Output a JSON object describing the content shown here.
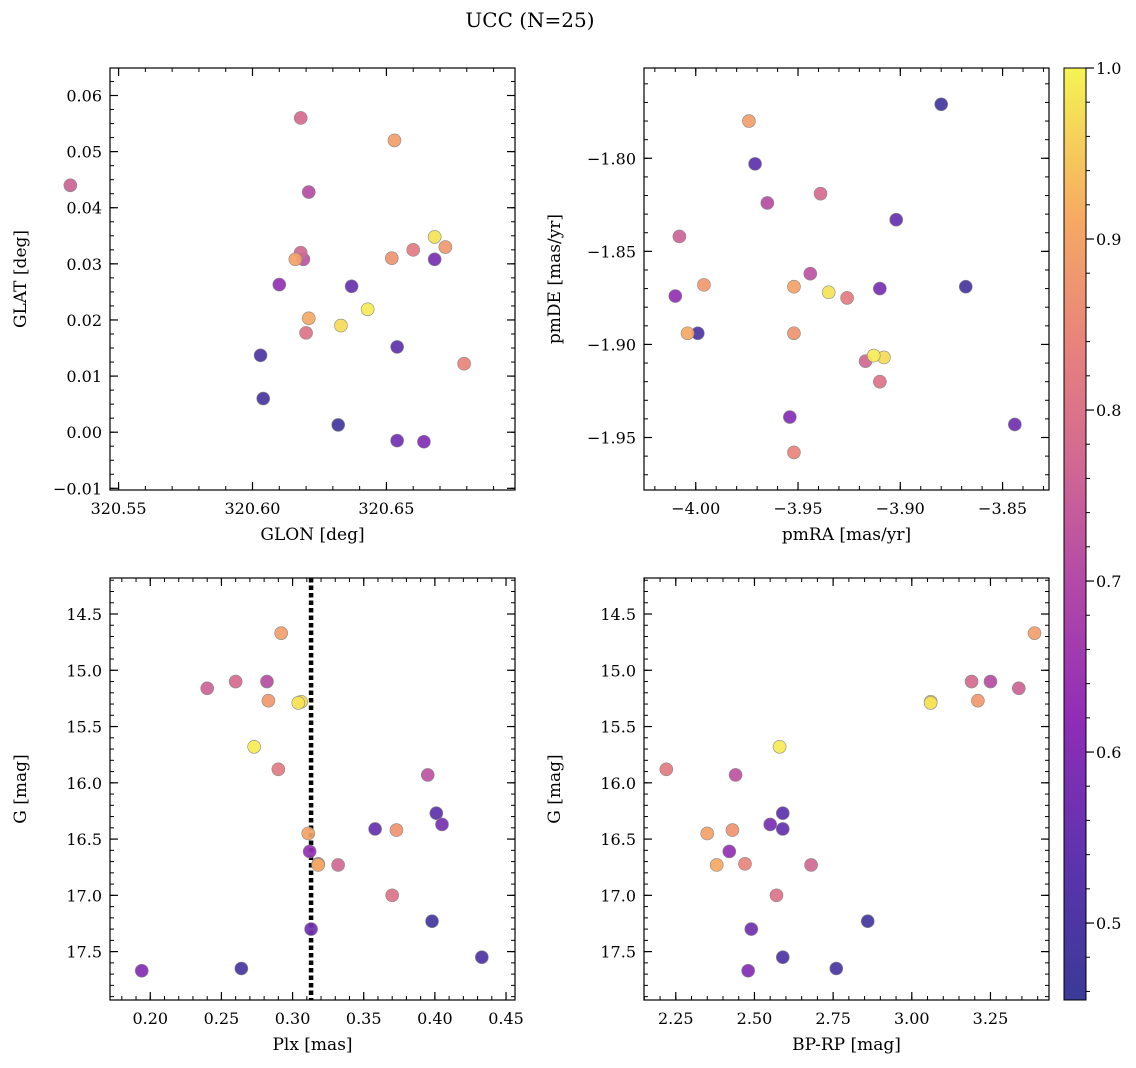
{
  "chart_data": {
    "type": "scatter",
    "title": "UCC (N=25)",
    "colormap": "plasma",
    "colorbar": {
      "range": [
        0.455,
        1.0
      ],
      "ticks": [
        0.5,
        0.6,
        0.7,
        0.8,
        0.9,
        1.0
      ],
      "tick_labels": [
        "0.5",
        "0.6",
        "0.7",
        "0.8",
        "0.9",
        "1.0"
      ]
    },
    "members": [
      {
        "glon": 320.532,
        "glat": 0.044,
        "pmra": -4.008,
        "pmde": -1.842,
        "plx": 0.24,
        "g": 15.16,
        "bprp": 3.34,
        "p": 0.76
      },
      {
        "glon": 320.618,
        "glat": 0.056,
        "pmra": -3.939,
        "pmde": -1.819,
        "plx": 0.26,
        "g": 15.1,
        "bprp": 3.19,
        "p": 0.78
      },
      {
        "glon": 320.653,
        "glat": 0.052,
        "pmra": -3.974,
        "pmde": -1.78,
        "plx": 0.292,
        "g": 14.67,
        "bprp": 3.39,
        "p": 0.89
      },
      {
        "glon": 320.621,
        "glat": 0.0428,
        "pmra": -3.965,
        "pmde": -1.824,
        "plx": 0.282,
        "g": 15.1,
        "bprp": 3.25,
        "p": 0.71
      },
      {
        "glon": 320.668,
        "glat": 0.0348,
        "pmra": -3.935,
        "pmde": -1.872,
        "plx": 0.304,
        "g": 15.29,
        "bprp": 3.06,
        "p": 0.98
      },
      {
        "glon": 320.672,
        "glat": 0.033,
        "pmra": -3.996,
        "pmde": -1.868,
        "plx": 0.283,
        "g": 15.27,
        "bprp": 3.21,
        "p": 0.88
      },
      {
        "glon": 320.66,
        "glat": 0.0325,
        "pmra": -3.926,
        "pmde": -1.875,
        "plx": 0.29,
        "g": 15.88,
        "bprp": 2.22,
        "p": 0.82
      },
      {
        "glon": 320.618,
        "glat": 0.032,
        "pmra": -3.917,
        "pmde": -1.909,
        "plx": 0.332,
        "g": 16.73,
        "bprp": 2.68,
        "p": 0.77
      },
      {
        "glon": 320.616,
        "glat": 0.0308,
        "pmra": -3.952,
        "pmde": -1.869,
        "plx": 0.311,
        "g": 16.45,
        "bprp": 2.35,
        "p": 0.9
      },
      {
        "glon": 320.619,
        "glat": 0.0308,
        "pmra": -3.944,
        "pmde": -1.862,
        "plx": 0.395,
        "g": 15.93,
        "bprp": 2.44,
        "p": 0.72
      },
      {
        "glon": 320.668,
        "glat": 0.0308,
        "pmra": -3.91,
        "pmde": -1.87,
        "plx": 0.405,
        "g": 16.37,
        "bprp": 2.55,
        "p": 0.58
      },
      {
        "glon": 320.652,
        "glat": 0.031,
        "pmra": -3.952,
        "pmde": -1.894,
        "plx": 0.373,
        "g": 16.42,
        "bprp": 2.43,
        "p": 0.87
      },
      {
        "glon": 320.637,
        "glat": 0.026,
        "pmra": -3.902,
        "pmde": -1.833,
        "plx": 0.358,
        "g": 16.41,
        "bprp": 2.59,
        "p": 0.55
      },
      {
        "glon": 320.61,
        "glat": 0.0263,
        "pmra": -4.01,
        "pmde": -1.874,
        "plx": 0.312,
        "g": 16.61,
        "bprp": 2.42,
        "p": 0.63
      },
      {
        "glon": 320.643,
        "glat": 0.0219,
        "pmra": -3.913,
        "pmde": -1.906,
        "plx": 0.273,
        "g": 15.68,
        "bprp": 2.58,
        "p": 0.99
      },
      {
        "glon": 320.633,
        "glat": 0.019,
        "pmra": -3.908,
        "pmde": -1.907,
        "plx": 0.306,
        "g": 15.28,
        "bprp": 3.06,
        "p": 0.97
      },
      {
        "glon": 320.621,
        "glat": 0.0203,
        "pmra": -4.004,
        "pmde": -1.894,
        "plx": 0.318,
        "g": 16.73,
        "bprp": 2.38,
        "p": 0.91
      },
      {
        "glon": 320.62,
        "glat": 0.0177,
        "pmra": -3.91,
        "pmde": -1.92,
        "plx": 0.37,
        "g": 17.0,
        "bprp": 2.57,
        "p": 0.8
      },
      {
        "glon": 320.654,
        "glat": 0.0152,
        "pmra": -3.971,
        "pmde": -1.803,
        "plx": 0.401,
        "g": 16.27,
        "bprp": 2.59,
        "p": 0.54
      },
      {
        "glon": 320.679,
        "glat": 0.0122,
        "pmra": -3.952,
        "pmde": -1.958,
        "plx": 0.318,
        "g": 16.72,
        "bprp": 2.47,
        "p": 0.84
      },
      {
        "glon": 320.603,
        "glat": 0.0137,
        "pmra": -3.999,
        "pmde": -1.894,
        "plx": 0.433,
        "g": 17.55,
        "bprp": 2.59,
        "p": 0.5
      },
      {
        "glon": 320.604,
        "glat": 0.006,
        "pmra": -3.868,
        "pmde": -1.869,
        "plx": 0.264,
        "g": 17.65,
        "bprp": 2.76,
        "p": 0.49
      },
      {
        "glon": 320.632,
        "glat": 0.0013,
        "pmra": -3.88,
        "pmde": -1.771,
        "plx": 0.398,
        "g": 17.23,
        "bprp": 2.86,
        "p": 0.48
      },
      {
        "glon": 320.654,
        "glat": -0.0015,
        "pmra": -3.844,
        "pmde": -1.943,
        "plx": 0.313,
        "g": 17.3,
        "bprp": 2.49,
        "p": 0.57
      },
      {
        "glon": 320.664,
        "glat": -0.0017,
        "pmra": -3.954,
        "pmde": -1.939,
        "plx": 0.194,
        "g": 17.67,
        "bprp": 2.48,
        "p": 0.6
      }
    ],
    "panels": [
      {
        "x": "glon",
        "y": "glat",
        "xlabel": "GLON [deg]",
        "ylabel": "GLAT [deg]",
        "xlim": [
          320.5468,
          320.698
        ],
        "ylim": [
          -0.0103,
          0.0649
        ],
        "y_inverted": false,
        "xticks": [
          320.55,
          320.6,
          320.65
        ],
        "xtick_labels": [
          "320.55",
          "320.60",
          "320.65"
        ],
        "xminor": 0.01,
        "yticks": [
          -0.01,
          0.0,
          0.01,
          0.02,
          0.03,
          0.04,
          0.05,
          0.06
        ],
        "ytick_labels": [
          "−0.01",
          "0.00",
          "0.01",
          "0.02",
          "0.03",
          "0.04",
          "0.05",
          "0.06"
        ],
        "yminor": 0.0025
      },
      {
        "x": "pmra",
        "y": "pmde",
        "xlabel": "pmRA [mas/yr]",
        "ylabel": "pmDE [mas/yr]",
        "xlim": [
          -4.0253,
          -3.8273
        ],
        "ylim": [
          -1.9782,
          -1.7515
        ],
        "y_inverted": false,
        "xticks": [
          -4.0,
          -3.95,
          -3.9,
          -3.85
        ],
        "xtick_labels": [
          "−4.00",
          "−3.95",
          "−3.90",
          "−3.85"
        ],
        "xminor": 0.01,
        "yticks": [
          -1.95,
          -1.9,
          -1.85,
          -1.8
        ],
        "ytick_labels": [
          "−1.95",
          "−1.90",
          "−1.85",
          "−1.80"
        ],
        "yminor": 0.01
      },
      {
        "x": "plx",
        "y": "g",
        "xlabel": "Plx [mas]",
        "ylabel": "G [mag]",
        "xlim": [
          0.1717,
          0.4563
        ],
        "ylim": [
          14.18,
          17.93
        ],
        "y_inverted": true,
        "xticks": [
          0.2,
          0.25,
          0.3,
          0.35,
          0.4,
          0.45
        ],
        "xtick_labels": [
          "0.20",
          "0.25",
          "0.30",
          "0.35",
          "0.40",
          "0.45"
        ],
        "xminor": 0.01,
        "yticks": [
          14.5,
          15.0,
          15.5,
          16.0,
          16.5,
          17.0,
          17.5
        ],
        "ytick_labels": [
          "14.5",
          "15.0",
          "15.5",
          "16.0",
          "16.5",
          "17.0",
          "17.5"
        ],
        "yminor": 0.1,
        "vline": 0.313
      },
      {
        "x": "bprp",
        "y": "g",
        "xlabel": "BP-RP [mag]",
        "ylabel": "G [mag]",
        "xlim": [
          2.149,
          3.436
        ],
        "ylim": [
          14.18,
          17.93
        ],
        "y_inverted": true,
        "xticks": [
          2.25,
          2.5,
          2.75,
          3.0,
          3.25
        ],
        "xtick_labels": [
          "2.25",
          "2.50",
          "2.75",
          "3.00",
          "3.25"
        ],
        "xminor": 0.05,
        "yticks": [
          14.5,
          15.0,
          15.5,
          16.0,
          16.5,
          17.0,
          17.5
        ],
        "ytick_labels": [
          "14.5",
          "15.0",
          "15.5",
          "16.0",
          "16.5",
          "17.0",
          "17.5"
        ],
        "yminor": 0.1
      }
    ]
  }
}
